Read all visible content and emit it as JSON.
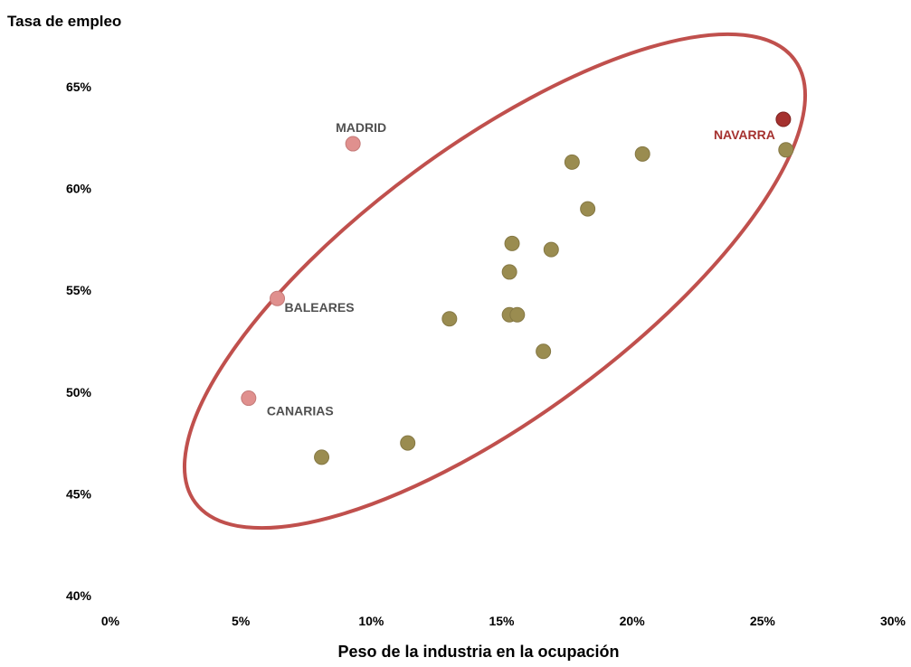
{
  "chart_data": {
    "type": "scatter",
    "title": "",
    "ylabel": "Tasa de empleo",
    "xlabel": "Peso de la industria en la ocupación",
    "xlim": [
      0,
      30
    ],
    "ylim": [
      40,
      65
    ],
    "x_ticks": [
      0,
      5,
      10,
      15,
      20,
      25,
      30
    ],
    "x_tick_labels": [
      "0%",
      "5%",
      "10%",
      "15%",
      "20%",
      "25%",
      "30%"
    ],
    "y_ticks": [
      40,
      45,
      50,
      55,
      60,
      65
    ],
    "y_tick_labels": [
      "40%",
      "45%",
      "50%",
      "55%",
      "60%",
      "65%"
    ],
    "grid": false,
    "points": [
      {
        "x": 9.3,
        "y": 62.2,
        "group": "highlight-light",
        "label": "MADRID"
      },
      {
        "x": 6.4,
        "y": 54.6,
        "group": "highlight-light",
        "label": "BALEARES"
      },
      {
        "x": 5.3,
        "y": 49.7,
        "group": "highlight-light",
        "label": "CANARIAS"
      },
      {
        "x": 25.8,
        "y": 63.4,
        "group": "highlight-dark",
        "label": "NAVARRA"
      },
      {
        "x": 25.9,
        "y": 61.9,
        "group": "base"
      },
      {
        "x": 20.4,
        "y": 61.7,
        "group": "base"
      },
      {
        "x": 17.7,
        "y": 61.3,
        "group": "base"
      },
      {
        "x": 18.3,
        "y": 59.0,
        "group": "base"
      },
      {
        "x": 15.4,
        "y": 57.3,
        "group": "base"
      },
      {
        "x": 16.9,
        "y": 57.0,
        "group": "base"
      },
      {
        "x": 15.3,
        "y": 55.9,
        "group": "base"
      },
      {
        "x": 15.3,
        "y": 53.8,
        "group": "base"
      },
      {
        "x": 15.6,
        "y": 53.8,
        "group": "base"
      },
      {
        "x": 13.0,
        "y": 53.6,
        "group": "base"
      },
      {
        "x": 16.6,
        "y": 52.0,
        "group": "base"
      },
      {
        "x": 11.4,
        "y": 47.5,
        "group": "base"
      },
      {
        "x": 8.1,
        "y": 46.8,
        "group": "base"
      }
    ],
    "colors": {
      "base": "#9a8c50",
      "highlight-light": "#e0908e",
      "highlight-dark": "#a5312f",
      "ellipse": "#c0504d",
      "annotation": "#505050",
      "annotation-highlight": "#a5312f"
    }
  }
}
